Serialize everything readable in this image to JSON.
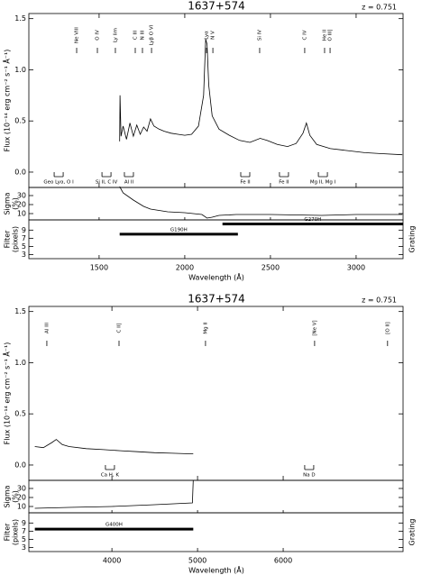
{
  "chart_data": [
    {
      "type": "line",
      "title": "1637+574",
      "annotation": "z = 0.751",
      "xlabel": "Wavelength (Å)",
      "ylabel": "Flux (10⁻¹⁴ erg cm⁻² s⁻¹ Å⁻¹)",
      "xlim": [
        1090,
        3274
      ],
      "xticks": [
        1500,
        2000,
        2500,
        3000
      ],
      "ylim": [
        -0.15,
        1.55
      ],
      "yticks": [
        {
          "value": 0,
          "label": "0.0"
        },
        0.5,
        {
          "value": 1,
          "label": "1.0"
        },
        1.5
      ],
      "color": "#000000",
      "x": [
        1620,
        1622,
        1628,
        1640,
        1660,
        1680,
        1700,
        1720,
        1740,
        1760,
        1780,
        1800,
        1820,
        1850,
        1880,
        1920,
        1960,
        2000,
        2040,
        2080,
        2110,
        2122,
        2130,
        2140,
        2160,
        2200,
        2260,
        2320,
        2380,
        2440,
        2480,
        2540,
        2600,
        2650,
        2690,
        2710,
        2730,
        2770,
        2850,
        2950,
        3050,
        3150,
        3270
      ],
      "values": [
        0.3,
        0.75,
        0.35,
        0.45,
        0.32,
        0.48,
        0.35,
        0.46,
        0.37,
        0.44,
        0.4,
        0.52,
        0.45,
        0.42,
        0.4,
        0.38,
        0.37,
        0.36,
        0.37,
        0.45,
        0.75,
        1.3,
        1.25,
        0.85,
        0.55,
        0.42,
        0.36,
        0.31,
        0.29,
        0.33,
        0.31,
        0.27,
        0.25,
        0.28,
        0.38,
        0.48,
        0.36,
        0.27,
        0.23,
        0.21,
        0.19,
        0.18,
        0.17
      ],
      "emission_lines": [
        {
          "label": "Ne VIII",
          "x": 1369
        },
        {
          "label": "O IV",
          "x": 1490
        },
        {
          "label": "Ly lim",
          "x": 1595
        },
        {
          "label": "C III",
          "x": 1711
        },
        {
          "label": "N III",
          "x": 1753
        },
        {
          "label": "Lyβ O VI",
          "x": 1806
        },
        {
          "label": "Lyα",
          "x": 2127
        },
        {
          "label": "N V",
          "x": 2164
        },
        {
          "label": "Si IV",
          "x": 2437
        },
        {
          "label": "C IV",
          "x": 2700
        },
        {
          "label": "He II",
          "x": 2816
        },
        {
          "label": "O III]",
          "x": 2848
        }
      ],
      "absorption_lines": [
        {
          "label": "Geo Lyα, O I",
          "x": 1264
        },
        {
          "label": "Si II, C IV",
          "x": 1543
        },
        {
          "label": "Al II",
          "x": 1674
        },
        {
          "label": "Fe II",
          "x": 2353
        },
        {
          "label": "Fe II",
          "x": 2579
        },
        {
          "label": "Mg II, Mg I",
          "x": 2806
        }
      ],
      "sigma": {
        "ylabel": [
          "Sigma",
          "(%)"
        ],
        "ylim": [
          3,
          39
        ],
        "yticks": [
          10,
          20,
          30
        ],
        "x": [
          1620,
          1640,
          1700,
          1760,
          1800,
          1900,
          2000,
          2100,
          2130,
          2160,
          2200,
          2300,
          2500,
          2800,
          3000,
          3270
        ],
        "values": [
          40,
          33,
          25,
          18,
          15,
          12,
          11,
          9,
          5,
          6,
          8,
          9,
          9,
          8,
          9,
          9
        ]
      },
      "filter": {
        "ylabel": [
          "Filter",
          "(pixels)"
        ],
        "right_label": "Grating",
        "ylim": [
          2,
          11.5
        ],
        "yticks": [
          3,
          5,
          7,
          9
        ],
        "gratings": [
          {
            "label": "G190H",
            "start": 1620,
            "end": 2310,
            "level": 8
          },
          {
            "label": "G270H",
            "start": 2220,
            "end": 3274,
            "level": 10.5
          }
        ]
      }
    },
    {
      "type": "line",
      "title": "1637+574",
      "annotation": "z = 0.751",
      "xlabel": "Wavelength (Å)",
      "ylabel": "Flux (10⁻¹⁴ erg cm⁻² s⁻¹ Å⁻¹)",
      "xlim": [
        3030,
        7400
      ],
      "xticks": [
        4000,
        5000,
        6000
      ],
      "ylim": [
        -0.15,
        1.55
      ],
      "yticks": [
        {
          "value": 0,
          "label": "0.0"
        },
        0.5,
        {
          "value": 1,
          "label": "1.0"
        },
        1.5
      ],
      "color": "#000000",
      "x": [
        3100,
        3200,
        3300,
        3350,
        3420,
        3500,
        3700,
        3900,
        4100,
        4300,
        4500,
        4700,
        4900,
        4950
      ],
      "values": [
        0.18,
        0.17,
        0.22,
        0.25,
        0.2,
        0.18,
        0.16,
        0.15,
        0.14,
        0.13,
        0.12,
        0.115,
        0.11,
        0.11
      ],
      "emission_lines": [
        {
          "label": "Al III",
          "x": 3240
        },
        {
          "label": "C II]",
          "x": 4083
        },
        {
          "label": "Mg II",
          "x": 5093
        },
        {
          "label": "[Ne V]",
          "x": 6367
        },
        {
          "label": "[O II]",
          "x": 7219
        }
      ],
      "absorption_lines": [
        {
          "label": "Ca H, K",
          "x": 3977
        },
        {
          "label": "Na D",
          "x": 6304
        }
      ],
      "sigma": {
        "ylabel": [
          "Sigma",
          "(%)"
        ],
        "ylim": [
          3,
          39
        ],
        "yticks": [
          10,
          20,
          30
        ],
        "x": [
          3100,
          3500,
          4000,
          4500,
          4940,
          4950
        ],
        "values": [
          8,
          9,
          10,
          12,
          14,
          39
        ]
      },
      "filter": {
        "ylabel": [
          "Filter",
          "(pixels)"
        ],
        "right_label": "Grating",
        "ylim": [
          2,
          11.5
        ],
        "yticks": [
          3,
          5,
          7,
          9
        ],
        "gratings": [
          {
            "label": "G400H",
            "start": 3100,
            "end": 4950,
            "level": 7.5
          }
        ]
      }
    }
  ]
}
